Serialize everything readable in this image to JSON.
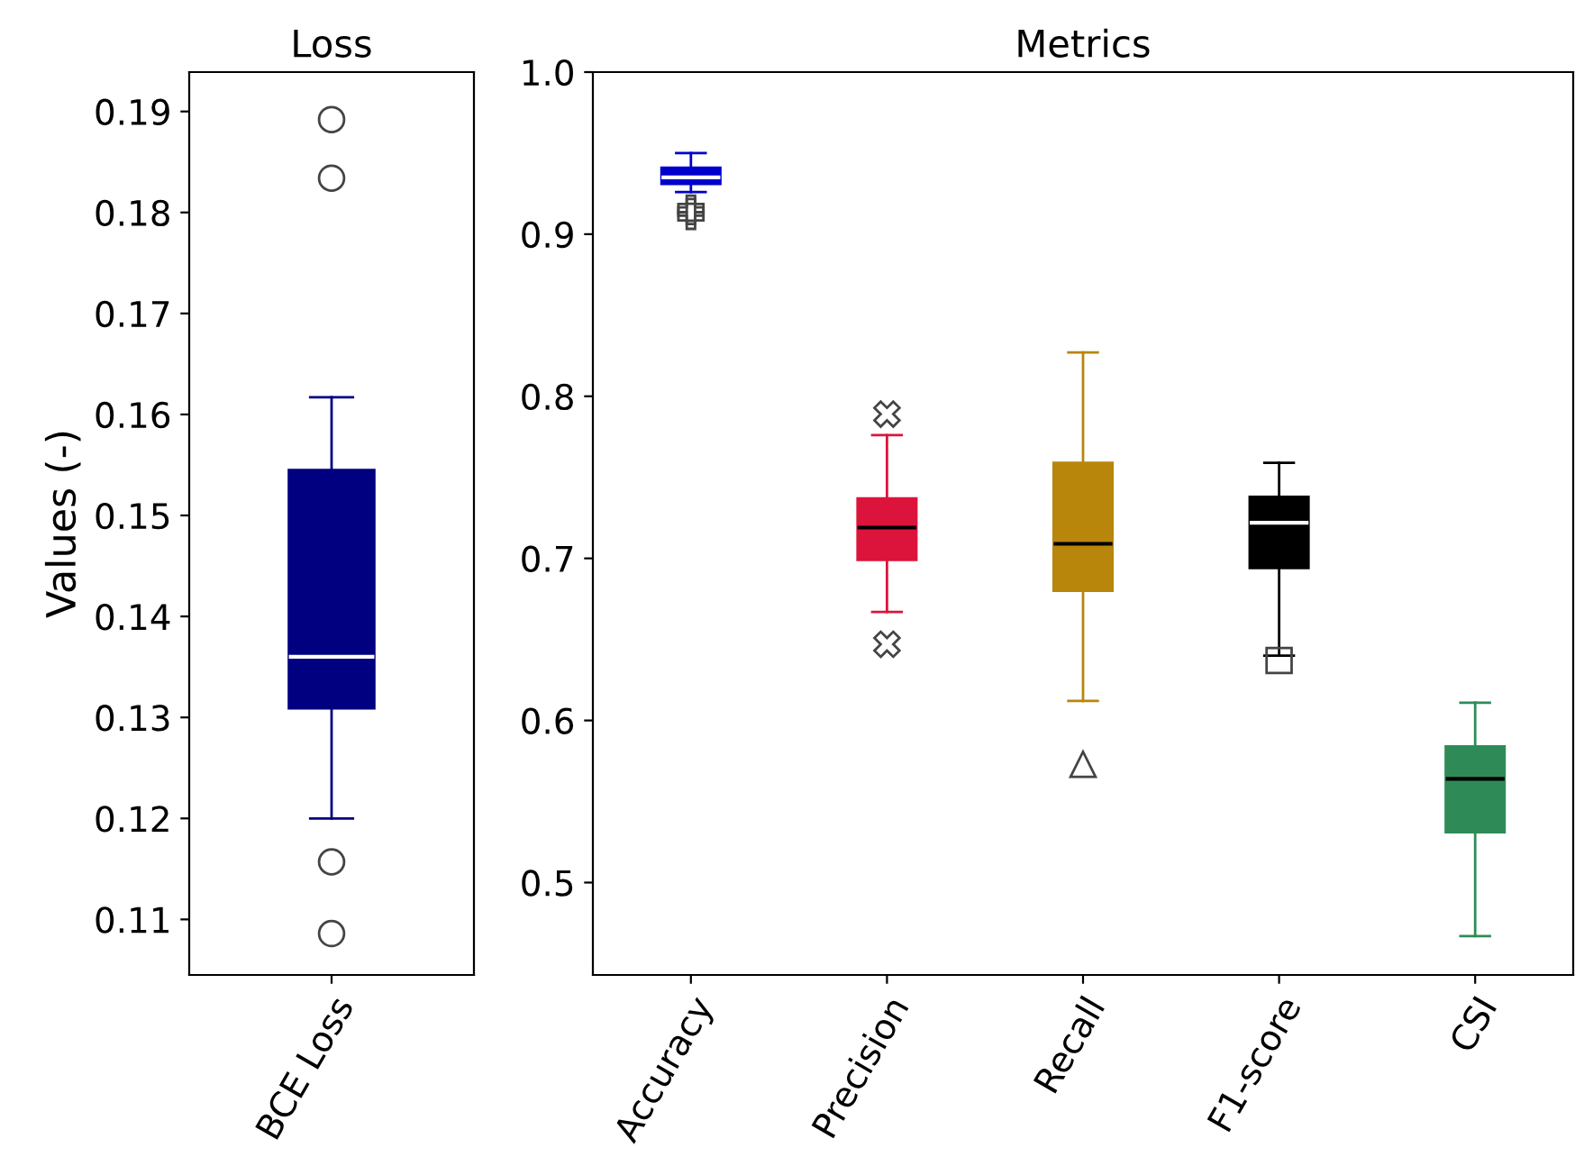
{
  "chart_data": [
    {
      "type": "box",
      "title": "Loss",
      "ylabel": "Values (-)",
      "categories": [
        "BCE Loss"
      ],
      "ylim": [
        0.1045,
        0.1939
      ],
      "yticks": [
        0.11,
        0.12,
        0.13,
        0.14,
        0.15,
        0.16,
        0.17,
        0.18,
        0.19
      ],
      "grid": false,
      "legend": false,
      "series": [
        {
          "color": "#000080",
          "marker": "circle",
          "boxes": [
            {
              "low": 0.12,
              "q1": 0.1309,
              "median": 0.136,
              "q3": 0.1545,
              "high": 0.1617,
              "outliers": [
                0.1892,
                0.1834,
                0.1157,
                0.1086
              ]
            }
          ]
        }
      ]
    },
    {
      "type": "box",
      "title": "Metrics",
      "categories": [
        "Accuracy",
        "Precision",
        "Recall",
        "F1-score",
        "CSI"
      ],
      "ylim": [
        0.443,
        1.0
      ],
      "yticks": [
        {
          "value": 0.5,
          "label": "0.5"
        },
        {
          "value": 0.6,
          "label": "0.6"
        },
        {
          "value": 0.7,
          "label": "0.7"
        },
        {
          "value": 0.8,
          "label": "0.8"
        },
        {
          "value": 0.9,
          "label": "0.9"
        },
        {
          "value": 1.0,
          "label": "1.0"
        }
      ],
      "grid": false,
      "legend": false,
      "series": [
        {
          "color": "#0000cd",
          "marker": "plus",
          "boxes": [
            {
              "low": 0.926,
              "q1": 0.931,
              "median": 0.935,
              "q3": 0.941,
              "high": 0.95,
              "outliers": [
                0.911,
                0.914,
                0.916
              ]
            },
            null,
            null,
            null,
            null
          ]
        },
        {
          "color": "#dc143c",
          "marker": "cross",
          "boxes": [
            null,
            {
              "low": 0.667,
              "q1": 0.699,
              "median": 0.719,
              "q3": 0.737,
              "high": 0.776,
              "outliers": [
                0.789,
                0.647
              ]
            },
            null,
            null,
            null
          ]
        },
        {
          "color": "#b8860b",
          "marker": "triangle",
          "boxes": [
            null,
            null,
            {
              "low": 0.612,
              "q1": 0.68,
              "median": 0.709,
              "q3": 0.759,
              "high": 0.827,
              "outliers": [
                0.573
              ]
            },
            null,
            null
          ]
        },
        {
          "color": "#000000",
          "marker": "square",
          "boxes": [
            null,
            null,
            null,
            {
              "low": 0.64,
              "q1": 0.694,
              "median": 0.722,
              "q3": 0.738,
              "high": 0.759,
              "outliers": [
                0.637
              ]
            },
            null
          ]
        },
        {
          "color": "#2e8b57",
          "boxes": [
            null,
            null,
            null,
            null,
            {
              "low": 0.467,
              "q1": 0.531,
              "median": 0.564,
              "q3": 0.584,
              "high": 0.611
            }
          ]
        }
      ]
    }
  ]
}
